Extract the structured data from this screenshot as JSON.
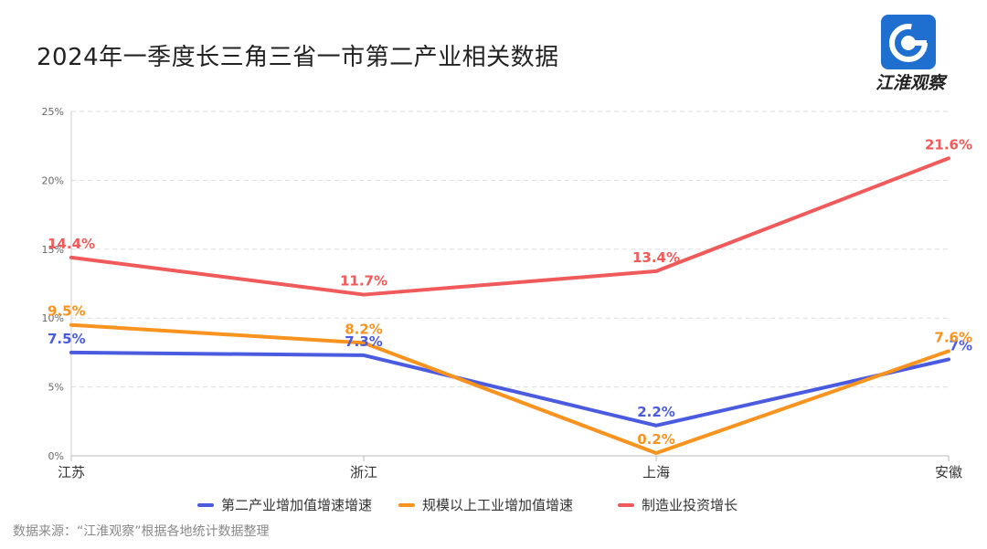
{
  "title": "2024年一季度长三角三省一市第二产业相关数据",
  "brand": {
    "name": "江淮观察",
    "color": "#1f6fd1"
  },
  "source": "数据来源：“江淮观察”根据各地统计数据整理",
  "chart_data": {
    "type": "line",
    "title": "2024年一季度长三角三省一市第二产业相关数据",
    "categories": [
      "江苏",
      "浙江",
      "上海",
      "安徽"
    ],
    "ylim": [
      0,
      25
    ],
    "yticks": [
      0,
      5,
      10,
      15,
      20,
      25
    ],
    "ytick_labels": [
      "0%",
      "5%",
      "10%",
      "15%",
      "20%",
      "25%"
    ],
    "grid": true,
    "legend": "bottom",
    "series": [
      {
        "name": "第二产业增加值增速增速",
        "color": "#4a5be0",
        "values": [
          7.5,
          7.3,
          2.2,
          7
        ],
        "labels": [
          "7.5%",
          "7.3%",
          "2.2%",
          "7%"
        ]
      },
      {
        "name": "规模以上工业增加值增速",
        "color": "#f7931e",
        "values": [
          9.5,
          8.2,
          0.2,
          7.6
        ],
        "labels": [
          "9.5%",
          "8.2%",
          "0.2%",
          "7.6%"
        ]
      },
      {
        "name": "制造业投资增长",
        "color": "#f15a5a",
        "values": [
          14.4,
          11.7,
          13.4,
          21.6
        ],
        "labels": [
          "14.4%",
          "11.7%",
          "13.4%",
          "21.6%"
        ]
      }
    ]
  }
}
